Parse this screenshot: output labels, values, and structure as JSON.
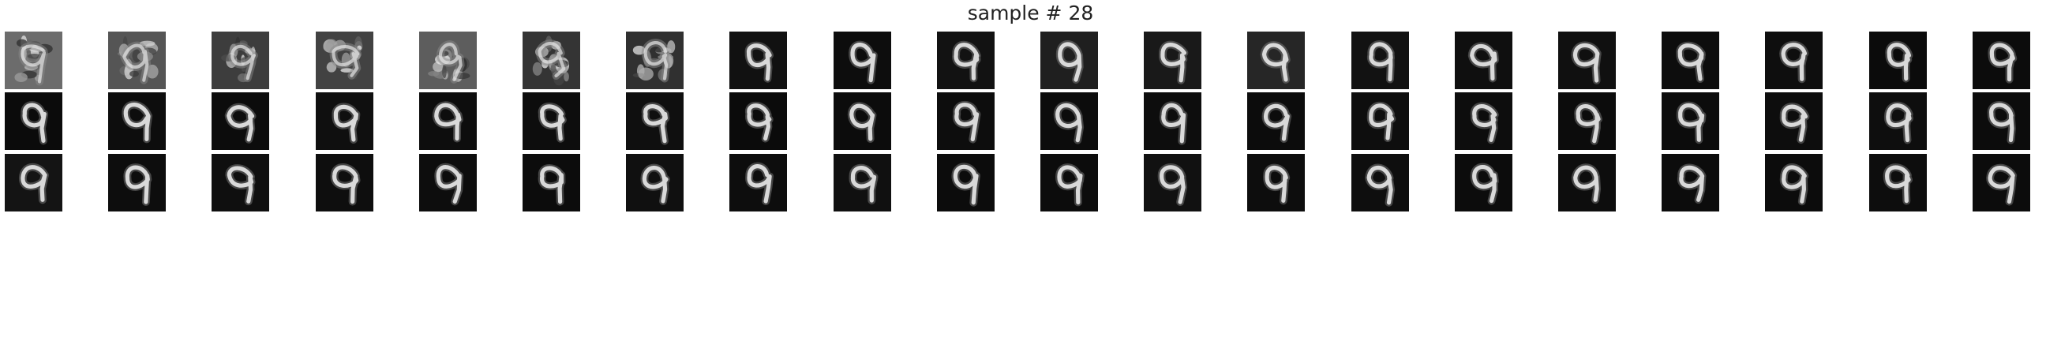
{
  "figure": {
    "title": "sample # 28",
    "panel_count": 60,
    "rows": 3,
    "columns": 20,
    "row_backgrounds": [
      [
        "#6c6c6c",
        "#555555",
        "#3d3d3d",
        "#424242",
        "#5d5d5d",
        "#343434",
        "#303030",
        "#111111",
        "#0d0d0d",
        "#121212",
        "#1f1f1f",
        "#191919",
        "#262626",
        "#121212",
        "#0f0f0f",
        "#101010",
        "#0d0d0d",
        "#0e0e0e",
        "#0b0b0b",
        "#0c0c0c"
      ],
      [
        "#0b0b0b",
        "#0d0d0d",
        "#0c0c0c",
        "#0f0f0f",
        "#0d0d0d",
        "#0d0d0d",
        "#0f0f0f",
        "#0b0b0b",
        "#0c0c0c",
        "#0d0d0d",
        "#0c0c0c",
        "#0d0d0d",
        "#0c0c0c",
        "#0e0e0e",
        "#0d0d0d",
        "#0c0c0c",
        "#0c0c0c",
        "#0d0d0d",
        "#0e0e0e",
        "#0c0c0c"
      ],
      [
        "#141414",
        "#0d0d0d",
        "#0f0f0f",
        "#0e0e0e",
        "#0d0d0d",
        "#0c0c0c",
        "#101010",
        "#0d0d0d",
        "#101010",
        "#0c0c0c",
        "#0c0c0c",
        "#111111",
        "#0d0d0d",
        "#0e0e0e",
        "#0c0c0c",
        "#0d0d0d",
        "#0c0c0c",
        "#0c0c0c",
        "#0d0d0d",
        "#0c0c0c"
      ]
    ],
    "stroke_color": "#e6e6e6"
  }
}
